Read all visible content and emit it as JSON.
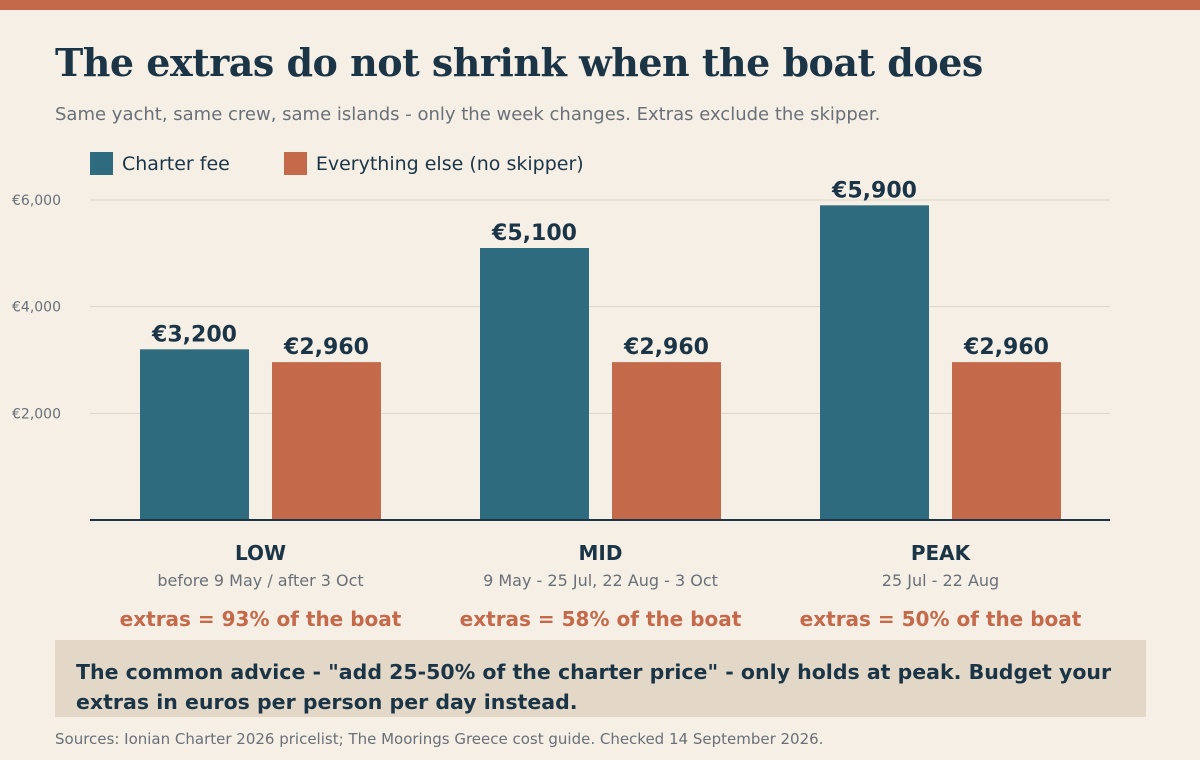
{
  "title": "The extras do not shrink when the boat does",
  "subtitle": "Same yacht, same crew, same islands - only the week changes. Extras exclude the skipper.",
  "colors": {
    "charter": "#2e6b7e",
    "extras": "#c4694a",
    "accent": "#c4694a",
    "text": "#1b3547",
    "muted": "#6a7077",
    "background": "#f5efe6",
    "note_box": "#e3d8c7"
  },
  "chart_data": {
    "type": "bar",
    "categories": [
      "LOW",
      "MID",
      "PEAK"
    ],
    "category_dates": [
      "before 9 May / after 3 Oct",
      "9 May - 25 Jul, 22 Aug - 3 Oct",
      "25 Jul - 22 Aug"
    ],
    "category_notes": [
      "extras = 93% of the boat",
      "extras = 58% of the boat",
      "extras = 50% of the boat"
    ],
    "series": [
      {
        "name": "Charter fee",
        "values": [
          3200,
          5100,
          5900
        ],
        "labels": [
          "€3,200",
          "€5,100",
          "€5,900"
        ],
        "color": "#2e6b7e"
      },
      {
        "name": "Everything else (no skipper)",
        "values": [
          2960,
          2960,
          2960
        ],
        "labels": [
          "€2,960",
          "€2,960",
          "€2,960"
        ],
        "color": "#c4694a"
      }
    ],
    "ylim": [
      0,
      6000
    ],
    "yticks": [
      2000,
      4000,
      6000
    ],
    "ytick_labels": [
      "€2,000",
      "€4,000",
      "€6,000"
    ],
    "grid": true,
    "legend": "top-left"
  },
  "note": "The common advice - \"add 25-50% of the charter price\" - only holds at peak. Budget your extras in euros per person per day instead.",
  "source": "Sources: Ionian Charter 2026 pricelist; The Moorings Greece cost guide. Checked 14 September 2026."
}
